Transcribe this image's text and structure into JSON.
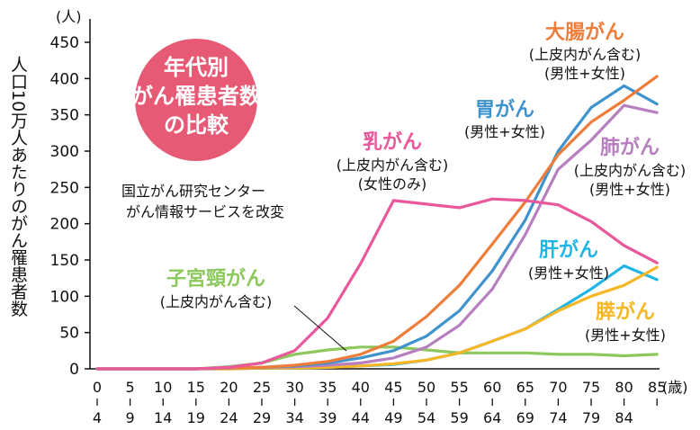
{
  "chart_data": {
    "type": "line",
    "ylabel": "人口10万人あたりのがん罹患者数",
    "y_unit": "(人)",
    "x_unit": "(歳)",
    "ylim": [
      0,
      450
    ],
    "yticks": [
      0,
      50,
      100,
      150,
      200,
      250,
      300,
      350,
      400,
      450
    ],
    "categories": [
      {
        "top": "0",
        "bottom": "4"
      },
      {
        "top": "5",
        "bottom": "9"
      },
      {
        "top": "10",
        "bottom": "14"
      },
      {
        "top": "15",
        "bottom": "19"
      },
      {
        "top": "20",
        "bottom": "24"
      },
      {
        "top": "25",
        "bottom": "29"
      },
      {
        "top": "30",
        "bottom": "34"
      },
      {
        "top": "35",
        "bottom": "39"
      },
      {
        "top": "40",
        "bottom": "44"
      },
      {
        "top": "45",
        "bottom": "49"
      },
      {
        "top": "50",
        "bottom": "54"
      },
      {
        "top": "55",
        "bottom": "59"
      },
      {
        "top": "60",
        "bottom": "64"
      },
      {
        "top": "65",
        "bottom": "69"
      },
      {
        "top": "70",
        "bottom": "74"
      },
      {
        "top": "75",
        "bottom": "79"
      },
      {
        "top": "80",
        "bottom": "84"
      },
      {
        "top": "85",
        "bottom": ""
      }
    ],
    "badge": [
      "年代別",
      "がん罹患者数",
      "の比較"
    ],
    "source": [
      "国立がん研究センター",
      "がん情報サービスを改変"
    ],
    "series": [
      {
        "name": "乳がん",
        "notes": [
          "(上皮内がん含む)",
          "(女性のみ)"
        ],
        "color": "#e9589a",
        "values": [
          0,
          0,
          0,
          0,
          2,
          8,
          25,
          70,
          145,
          232,
          227,
          222,
          234,
          232,
          226,
          203,
          170,
          146
        ]
      },
      {
        "name": "子宮頸がん",
        "notes": [
          "(上皮内がん含む)"
        ],
        "color": "#8cc85c",
        "values": [
          0,
          0,
          0,
          0,
          3,
          8,
          20,
          26,
          30,
          30,
          26,
          22,
          22,
          22,
          20,
          20,
          18,
          20
        ]
      },
      {
        "name": "大腸がん",
        "notes": [
          "(上皮内がん含む)",
          "(男性+女性)"
        ],
        "color": "#ee7d3a",
        "values": [
          0,
          0,
          0,
          0,
          1,
          2,
          5,
          10,
          20,
          38,
          72,
          115,
          172,
          230,
          295,
          340,
          370,
          403
        ]
      },
      {
        "name": "胃がん",
        "notes": [
          "(男性+女性)"
        ],
        "color": "#3f93cd",
        "values": [
          0,
          0,
          0,
          0,
          1,
          2,
          4,
          8,
          15,
          25,
          45,
          80,
          135,
          205,
          300,
          360,
          390,
          365
        ]
      },
      {
        "name": "肺がん",
        "notes": [
          "(上皮内がん含む)",
          "(男性+女性)"
        ],
        "color": "#b77fc0",
        "values": [
          0,
          0,
          0,
          0,
          1,
          2,
          3,
          5,
          8,
          15,
          30,
          60,
          110,
          185,
          275,
          315,
          363,
          353
        ]
      },
      {
        "name": "肝がん",
        "notes": [
          "(男性+女性)"
        ],
        "color": "#1fb5e5",
        "values": [
          0,
          0,
          0,
          0,
          0,
          1,
          1,
          2,
          4,
          6,
          12,
          22,
          38,
          55,
          82,
          110,
          142,
          123
        ]
      },
      {
        "name": "膵がん",
        "notes": [
          "(男性+女性)"
        ],
        "color": "#f7b724",
        "values": [
          0,
          0,
          0,
          0,
          0,
          1,
          1,
          2,
          4,
          7,
          12,
          22,
          38,
          55,
          80,
          100,
          115,
          140
        ]
      }
    ]
  }
}
